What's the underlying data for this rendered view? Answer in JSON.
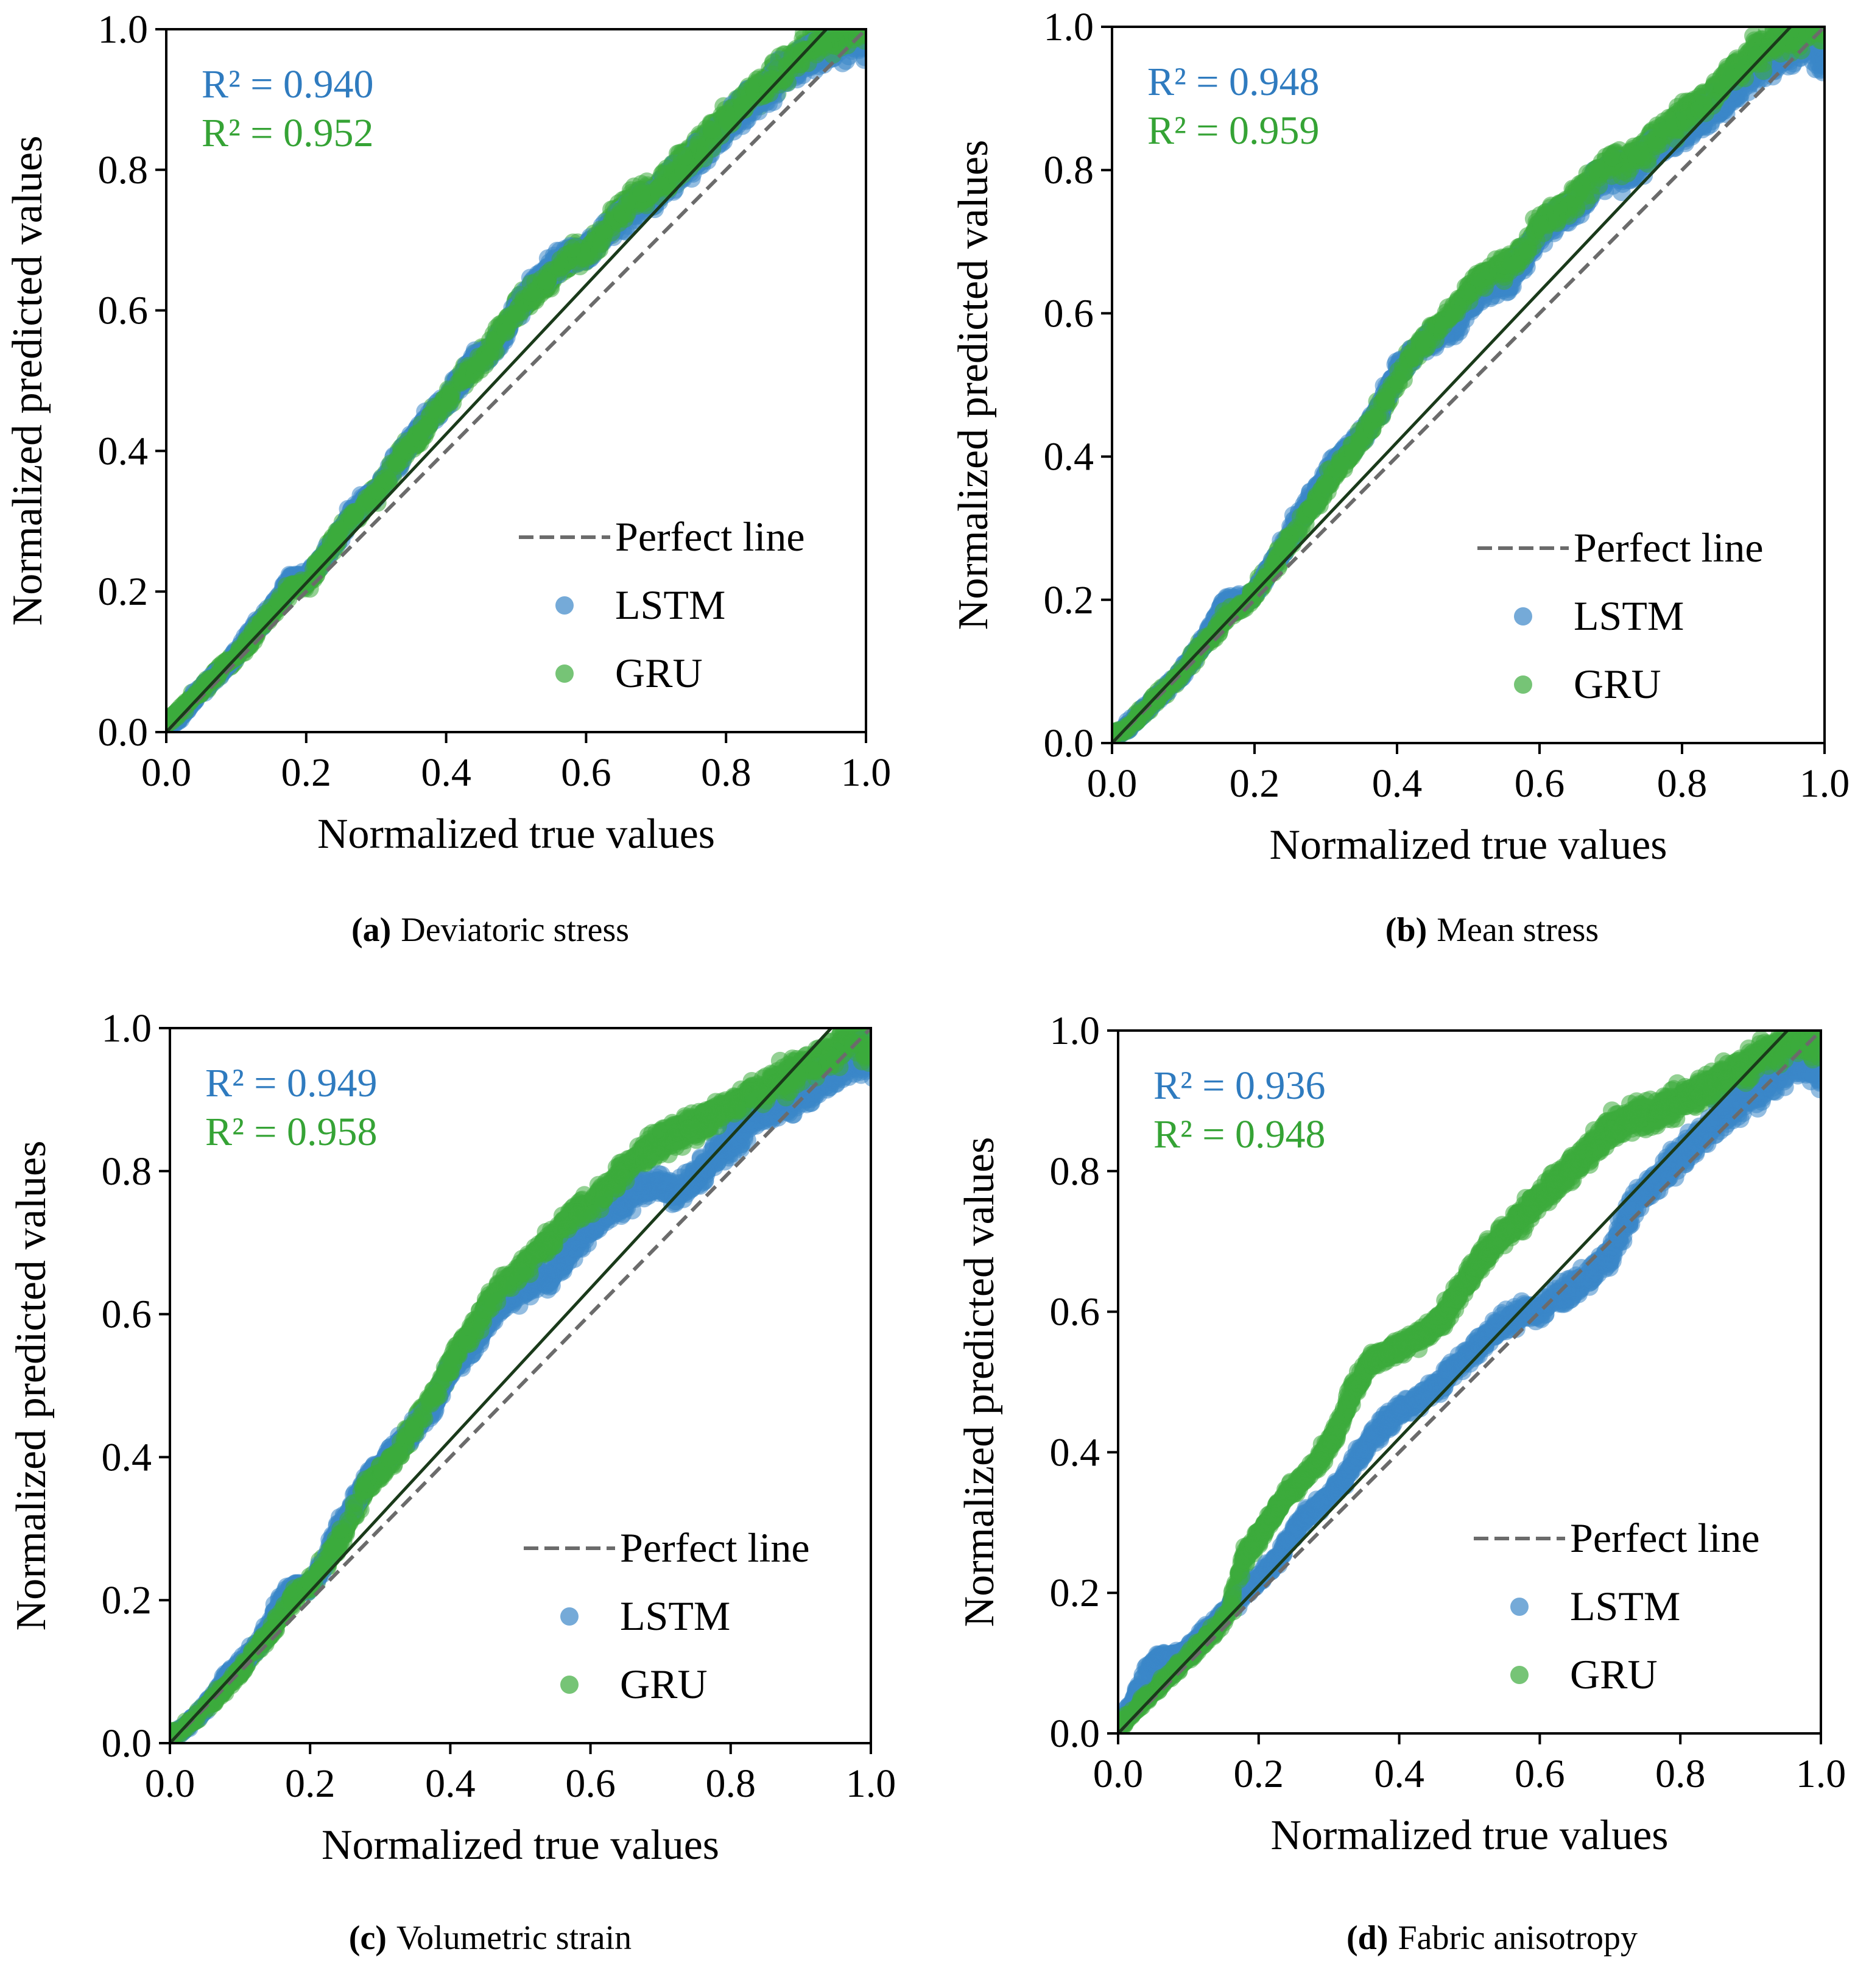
{
  "figure": {
    "perfect_line_color": "#6b6b6b",
    "fit_line_color": "#1a3a1a",
    "lstm_color": "#3a86c8",
    "gru_color": "#3cab3c"
  },
  "chart_data": [
    {
      "type": "scatter",
      "panel_label": "(a)",
      "caption": "Deviatoric stress",
      "xlabel": "Normalized true values",
      "ylabel": "Normalized predicted values",
      "xlim": [
        0,
        1
      ],
      "ylim": [
        0,
        1
      ],
      "xticks": [
        "0.0",
        "0.2",
        "0.4",
        "0.6",
        "0.8",
        "1.0"
      ],
      "yticks": [
        "0.0",
        "0.2",
        "0.4",
        "0.6",
        "0.8",
        "1.0"
      ],
      "grid": false,
      "legend_position": "lower-right",
      "legend": [
        "Perfect line",
        "LSTM",
        "GRU"
      ],
      "annotations": [
        {
          "text": "R² = 0.940",
          "series": "LSTM",
          "color": "#2f7bbf"
        },
        {
          "text": "R² = 0.952",
          "series": "GRU",
          "color": "#35a335"
        }
      ],
      "fit_line_slope": 1.06,
      "series": [
        {
          "name": "LSTM",
          "color": "#3a86c8",
          "x": [
            0.0,
            0.02,
            0.04,
            0.06,
            0.08,
            0.1,
            0.12,
            0.14,
            0.16,
            0.18,
            0.2,
            0.22,
            0.24,
            0.26,
            0.28,
            0.3,
            0.32,
            0.34,
            0.36,
            0.38,
            0.4,
            0.42,
            0.44,
            0.46,
            0.48,
            0.5,
            0.52,
            0.54,
            0.56,
            0.58,
            0.6,
            0.62,
            0.64,
            0.66,
            0.68,
            0.7,
            0.72,
            0.74,
            0.76,
            0.78,
            0.8,
            0.82,
            0.84,
            0.86,
            0.88,
            0.9,
            0.92,
            0.94,
            0.96,
            0.98,
            1.0
          ],
          "y": [
            0.01,
            0.02,
            0.05,
            0.07,
            0.09,
            0.11,
            0.14,
            0.16,
            0.19,
            0.22,
            0.22,
            0.24,
            0.27,
            0.3,
            0.33,
            0.34,
            0.37,
            0.4,
            0.43,
            0.45,
            0.47,
            0.5,
            0.53,
            0.54,
            0.56,
            0.6,
            0.63,
            0.65,
            0.67,
            0.68,
            0.68,
            0.7,
            0.72,
            0.74,
            0.75,
            0.76,
            0.79,
            0.8,
            0.82,
            0.84,
            0.86,
            0.88,
            0.9,
            0.91,
            0.93,
            0.95,
            0.96,
            0.97,
            0.98,
            0.99,
            0.98
          ]
        },
        {
          "name": "GRU",
          "color": "#3cab3c",
          "x": [
            0.0,
            0.02,
            0.04,
            0.06,
            0.08,
            0.1,
            0.12,
            0.14,
            0.16,
            0.18,
            0.2,
            0.22,
            0.24,
            0.26,
            0.28,
            0.3,
            0.32,
            0.34,
            0.36,
            0.38,
            0.4,
            0.42,
            0.44,
            0.46,
            0.48,
            0.5,
            0.52,
            0.54,
            0.56,
            0.58,
            0.6,
            0.62,
            0.64,
            0.66,
            0.68,
            0.7,
            0.72,
            0.74,
            0.76,
            0.78,
            0.8,
            0.82,
            0.84,
            0.86,
            0.88,
            0.9,
            0.92,
            0.94,
            0.96,
            0.98,
            1.0
          ],
          "y": [
            0.01,
            0.03,
            0.05,
            0.07,
            0.09,
            0.11,
            0.13,
            0.16,
            0.18,
            0.21,
            0.21,
            0.24,
            0.27,
            0.3,
            0.32,
            0.34,
            0.37,
            0.4,
            0.42,
            0.45,
            0.47,
            0.5,
            0.52,
            0.54,
            0.57,
            0.6,
            0.62,
            0.64,
            0.66,
            0.68,
            0.68,
            0.7,
            0.73,
            0.75,
            0.76,
            0.77,
            0.79,
            0.81,
            0.83,
            0.85,
            0.87,
            0.89,
            0.91,
            0.92,
            0.94,
            0.96,
            0.97,
            0.98,
            0.99,
            1.0,
            0.99
          ]
        }
      ]
    },
    {
      "type": "scatter",
      "panel_label": "(b)",
      "caption": "Mean stress",
      "xlabel": "Normalized true values",
      "ylabel": "Normalized predicted values",
      "xlim": [
        0,
        1
      ],
      "ylim": [
        0,
        1
      ],
      "xticks": [
        "0.0",
        "0.2",
        "0.4",
        "0.6",
        "0.8",
        "1.0"
      ],
      "yticks": [
        "0.0",
        "0.2",
        "0.4",
        "0.6",
        "0.8",
        "1.0"
      ],
      "grid": false,
      "legend_position": "lower-right",
      "legend": [
        "Perfect line",
        "LSTM",
        "GRU"
      ],
      "annotations": [
        {
          "text": "R² = 0.948",
          "series": "LSTM",
          "color": "#2f7bbf"
        },
        {
          "text": "R² = 0.959",
          "series": "GRU",
          "color": "#35a335"
        }
      ],
      "fit_line_slope": 1.05,
      "series": [
        {
          "name": "LSTM",
          "color": "#3a86c8",
          "x": [
            0.0,
            0.02,
            0.04,
            0.06,
            0.08,
            0.1,
            0.12,
            0.14,
            0.16,
            0.18,
            0.2,
            0.22,
            0.24,
            0.26,
            0.28,
            0.3,
            0.32,
            0.34,
            0.36,
            0.38,
            0.4,
            0.42,
            0.44,
            0.46,
            0.48,
            0.5,
            0.52,
            0.54,
            0.56,
            0.58,
            0.6,
            0.62,
            0.64,
            0.66,
            0.68,
            0.7,
            0.72,
            0.74,
            0.76,
            0.78,
            0.8,
            0.82,
            0.84,
            0.86,
            0.88,
            0.9,
            0.92,
            0.94,
            0.96,
            0.98,
            1.0
          ],
          "y": [
            0.01,
            0.02,
            0.04,
            0.06,
            0.08,
            0.1,
            0.13,
            0.16,
            0.2,
            0.2,
            0.21,
            0.24,
            0.27,
            0.31,
            0.34,
            0.37,
            0.4,
            0.42,
            0.44,
            0.48,
            0.52,
            0.54,
            0.56,
            0.57,
            0.58,
            0.61,
            0.63,
            0.64,
            0.65,
            0.68,
            0.71,
            0.73,
            0.74,
            0.76,
            0.78,
            0.8,
            0.79,
            0.81,
            0.83,
            0.84,
            0.85,
            0.87,
            0.88,
            0.9,
            0.92,
            0.94,
            0.95,
            0.96,
            0.97,
            0.98,
            0.95
          ]
        },
        {
          "name": "GRU",
          "color": "#3cab3c",
          "x": [
            0.0,
            0.02,
            0.04,
            0.06,
            0.08,
            0.1,
            0.12,
            0.14,
            0.16,
            0.18,
            0.2,
            0.22,
            0.24,
            0.26,
            0.28,
            0.3,
            0.32,
            0.34,
            0.36,
            0.38,
            0.4,
            0.42,
            0.44,
            0.46,
            0.48,
            0.5,
            0.52,
            0.54,
            0.56,
            0.58,
            0.6,
            0.62,
            0.64,
            0.66,
            0.68,
            0.7,
            0.72,
            0.74,
            0.76,
            0.78,
            0.8,
            0.82,
            0.84,
            0.86,
            0.88,
            0.9,
            0.92,
            0.94,
            0.96,
            0.98,
            1.0
          ],
          "y": [
            0.01,
            0.02,
            0.04,
            0.06,
            0.08,
            0.1,
            0.13,
            0.15,
            0.18,
            0.19,
            0.21,
            0.24,
            0.27,
            0.3,
            0.33,
            0.36,
            0.39,
            0.41,
            0.44,
            0.47,
            0.51,
            0.54,
            0.56,
            0.58,
            0.6,
            0.63,
            0.65,
            0.66,
            0.67,
            0.69,
            0.72,
            0.74,
            0.75,
            0.77,
            0.79,
            0.81,
            0.81,
            0.82,
            0.84,
            0.86,
            0.87,
            0.89,
            0.9,
            0.92,
            0.94,
            0.96,
            0.97,
            0.98,
            0.99,
            1.0,
            0.98
          ]
        }
      ]
    },
    {
      "type": "scatter",
      "panel_label": "(c)",
      "caption": "Volumetric strain",
      "xlabel": "Normalized true values",
      "ylabel": "Normalized predicted values",
      "xlim": [
        0,
        1
      ],
      "ylim": [
        0,
        1
      ],
      "xticks": [
        "0.0",
        "0.2",
        "0.4",
        "0.6",
        "0.8",
        "1.0"
      ],
      "yticks": [
        "0.0",
        "0.2",
        "0.4",
        "0.6",
        "0.8",
        "1.0"
      ],
      "grid": false,
      "legend_position": "lower-right",
      "legend": [
        "Perfect line",
        "LSTM",
        "GRU"
      ],
      "annotations": [
        {
          "text": "R² = 0.949",
          "series": "LSTM",
          "color": "#2f7bbf"
        },
        {
          "text": "R² = 0.958",
          "series": "GRU",
          "color": "#35a335"
        }
      ],
      "fit_line_slope": 1.06,
      "series": [
        {
          "name": "LSTM",
          "color": "#3a86c8",
          "x": [
            0.0,
            0.02,
            0.04,
            0.06,
            0.08,
            0.1,
            0.12,
            0.14,
            0.16,
            0.18,
            0.2,
            0.22,
            0.24,
            0.26,
            0.28,
            0.3,
            0.32,
            0.34,
            0.36,
            0.38,
            0.4,
            0.42,
            0.44,
            0.46,
            0.48,
            0.5,
            0.52,
            0.54,
            0.56,
            0.58,
            0.6,
            0.62,
            0.64,
            0.66,
            0.68,
            0.7,
            0.72,
            0.74,
            0.76,
            0.78,
            0.8,
            0.82,
            0.84,
            0.86,
            0.88,
            0.9,
            0.92,
            0.94,
            0.96,
            0.98,
            1.0
          ],
          "y": [
            0.01,
            0.02,
            0.04,
            0.06,
            0.09,
            0.11,
            0.13,
            0.16,
            0.2,
            0.22,
            0.22,
            0.25,
            0.3,
            0.33,
            0.37,
            0.39,
            0.41,
            0.43,
            0.45,
            0.48,
            0.52,
            0.54,
            0.57,
            0.6,
            0.62,
            0.63,
            0.65,
            0.65,
            0.67,
            0.7,
            0.72,
            0.74,
            0.75,
            0.77,
            0.78,
            0.78,
            0.77,
            0.78,
            0.8,
            0.82,
            0.84,
            0.86,
            0.88,
            0.89,
            0.9,
            0.91,
            0.92,
            0.93,
            0.94,
            0.96,
            0.95
          ]
        },
        {
          "name": "GRU",
          "color": "#3cab3c",
          "x": [
            0.0,
            0.02,
            0.04,
            0.06,
            0.08,
            0.1,
            0.12,
            0.14,
            0.16,
            0.18,
            0.2,
            0.22,
            0.24,
            0.26,
            0.28,
            0.3,
            0.32,
            0.34,
            0.36,
            0.38,
            0.4,
            0.42,
            0.44,
            0.46,
            0.48,
            0.5,
            0.52,
            0.54,
            0.56,
            0.58,
            0.6,
            0.62,
            0.64,
            0.66,
            0.68,
            0.7,
            0.72,
            0.74,
            0.76,
            0.78,
            0.8,
            0.82,
            0.84,
            0.86,
            0.88,
            0.9,
            0.92,
            0.94,
            0.96,
            0.98,
            1.0
          ],
          "y": [
            0.01,
            0.02,
            0.04,
            0.06,
            0.08,
            0.1,
            0.13,
            0.15,
            0.18,
            0.21,
            0.22,
            0.25,
            0.28,
            0.32,
            0.36,
            0.38,
            0.4,
            0.43,
            0.46,
            0.49,
            0.53,
            0.56,
            0.59,
            0.62,
            0.64,
            0.66,
            0.68,
            0.7,
            0.72,
            0.74,
            0.75,
            0.77,
            0.79,
            0.81,
            0.83,
            0.84,
            0.85,
            0.86,
            0.87,
            0.88,
            0.89,
            0.9,
            0.91,
            0.92,
            0.93,
            0.94,
            0.95,
            0.96,
            0.97,
            0.98,
            0.97
          ]
        }
      ]
    },
    {
      "type": "scatter",
      "panel_label": "(d)",
      "caption": "Fabric anisotropy",
      "xlabel": "Normalized true values",
      "ylabel": "Normalized predicted values",
      "xlim": [
        0,
        1
      ],
      "ylim": [
        0,
        1
      ],
      "xticks": [
        "0.0",
        "0.2",
        "0.4",
        "0.6",
        "0.8",
        "1.0"
      ],
      "yticks": [
        "0.0",
        "0.2",
        "0.4",
        "0.6",
        "0.8",
        "1.0"
      ],
      "grid": false,
      "legend_position": "lower-right",
      "legend": [
        "Perfect line",
        "LSTM",
        "GRU"
      ],
      "annotations": [
        {
          "text": "R² = 0.936",
          "series": "LSTM",
          "color": "#2f7bbf"
        },
        {
          "text": "R² = 0.948",
          "series": "GRU",
          "color": "#35a335"
        }
      ],
      "fit_line_slope": 1.05,
      "series": [
        {
          "name": "LSTM",
          "color": "#3a86c8",
          "x": [
            0.0,
            0.02,
            0.04,
            0.06,
            0.08,
            0.1,
            0.12,
            0.14,
            0.16,
            0.18,
            0.2,
            0.22,
            0.24,
            0.26,
            0.28,
            0.3,
            0.32,
            0.34,
            0.36,
            0.38,
            0.4,
            0.42,
            0.44,
            0.46,
            0.48,
            0.5,
            0.52,
            0.54,
            0.56,
            0.58,
            0.6,
            0.62,
            0.64,
            0.66,
            0.68,
            0.7,
            0.72,
            0.74,
            0.76,
            0.78,
            0.8,
            0.82,
            0.84,
            0.86,
            0.88,
            0.9,
            0.92,
            0.94,
            0.96,
            0.98,
            1.0
          ],
          "y": [
            0.01,
            0.04,
            0.09,
            0.11,
            0.11,
            0.12,
            0.14,
            0.16,
            0.18,
            0.2,
            0.22,
            0.24,
            0.27,
            0.3,
            0.32,
            0.34,
            0.36,
            0.39,
            0.42,
            0.44,
            0.46,
            0.47,
            0.48,
            0.5,
            0.52,
            0.54,
            0.56,
            0.58,
            0.59,
            0.6,
            0.6,
            0.62,
            0.63,
            0.64,
            0.66,
            0.68,
            0.72,
            0.76,
            0.78,
            0.8,
            0.82,
            0.84,
            0.86,
            0.88,
            0.89,
            0.91,
            0.92,
            0.94,
            0.95,
            0.96,
            0.94
          ]
        },
        {
          "name": "GRU",
          "color": "#3cab3c",
          "x": [
            0.0,
            0.02,
            0.04,
            0.06,
            0.08,
            0.1,
            0.12,
            0.14,
            0.16,
            0.18,
            0.2,
            0.22,
            0.24,
            0.26,
            0.28,
            0.3,
            0.32,
            0.34,
            0.36,
            0.38,
            0.4,
            0.42,
            0.44,
            0.46,
            0.48,
            0.5,
            0.52,
            0.54,
            0.56,
            0.58,
            0.6,
            0.62,
            0.64,
            0.66,
            0.68,
            0.7,
            0.72,
            0.74,
            0.76,
            0.78,
            0.8,
            0.82,
            0.84,
            0.86,
            0.88,
            0.9,
            0.92,
            0.94,
            0.96,
            0.98,
            1.0
          ],
          "y": [
            0.01,
            0.03,
            0.05,
            0.07,
            0.09,
            0.11,
            0.13,
            0.15,
            0.18,
            0.25,
            0.28,
            0.31,
            0.34,
            0.36,
            0.38,
            0.41,
            0.45,
            0.5,
            0.53,
            0.54,
            0.55,
            0.56,
            0.57,
            0.59,
            0.62,
            0.65,
            0.68,
            0.7,
            0.72,
            0.74,
            0.76,
            0.78,
            0.8,
            0.82,
            0.84,
            0.86,
            0.87,
            0.88,
            0.88,
            0.89,
            0.9,
            0.91,
            0.92,
            0.93,
            0.94,
            0.95,
            0.96,
            0.97,
            0.98,
            0.99,
            0.97
          ]
        }
      ]
    }
  ]
}
